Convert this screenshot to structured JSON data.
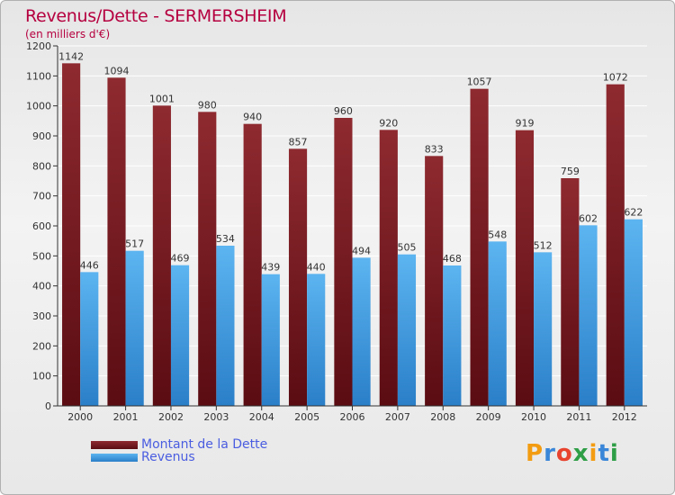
{
  "chart_data": {
    "type": "bar",
    "title": "Revenus/Dette - SERMERSHEIM",
    "subtitle": "(en milliers d'€)",
    "categories": [
      "2000",
      "2001",
      "2002",
      "2003",
      "2004",
      "2005",
      "2006",
      "2007",
      "2008",
      "2009",
      "2010",
      "2011",
      "2012"
    ],
    "series": [
      {
        "name": "Montant de la Dette",
        "values": [
          1142,
          1094,
          1001,
          980,
          940,
          857,
          960,
          920,
          833,
          1057,
          919,
          759,
          1072
        ],
        "color": "#7a1a22"
      },
      {
        "name": "Revenus",
        "values": [
          446,
          517,
          469,
          534,
          439,
          440,
          494,
          505,
          468,
          548,
          512,
          602,
          622
        ],
        "color": "#4aa3e6"
      }
    ],
    "ylim": [
      0,
      1200
    ],
    "yticks": [
      0,
      100,
      200,
      300,
      400,
      500,
      600,
      700,
      800,
      900,
      1000,
      1100,
      1200
    ],
    "grid": true,
    "legend": "bottom-left"
  },
  "logo": {
    "text": "Proxiti",
    "letters": [
      "P",
      "r",
      "o",
      "x",
      "i",
      "t",
      "i"
    ],
    "colors": [
      "#f39c12",
      "#3a86d8",
      "#e8432e",
      "#2e9e46",
      "#f39c12",
      "#3a86d8",
      "#2e9e46"
    ]
  }
}
